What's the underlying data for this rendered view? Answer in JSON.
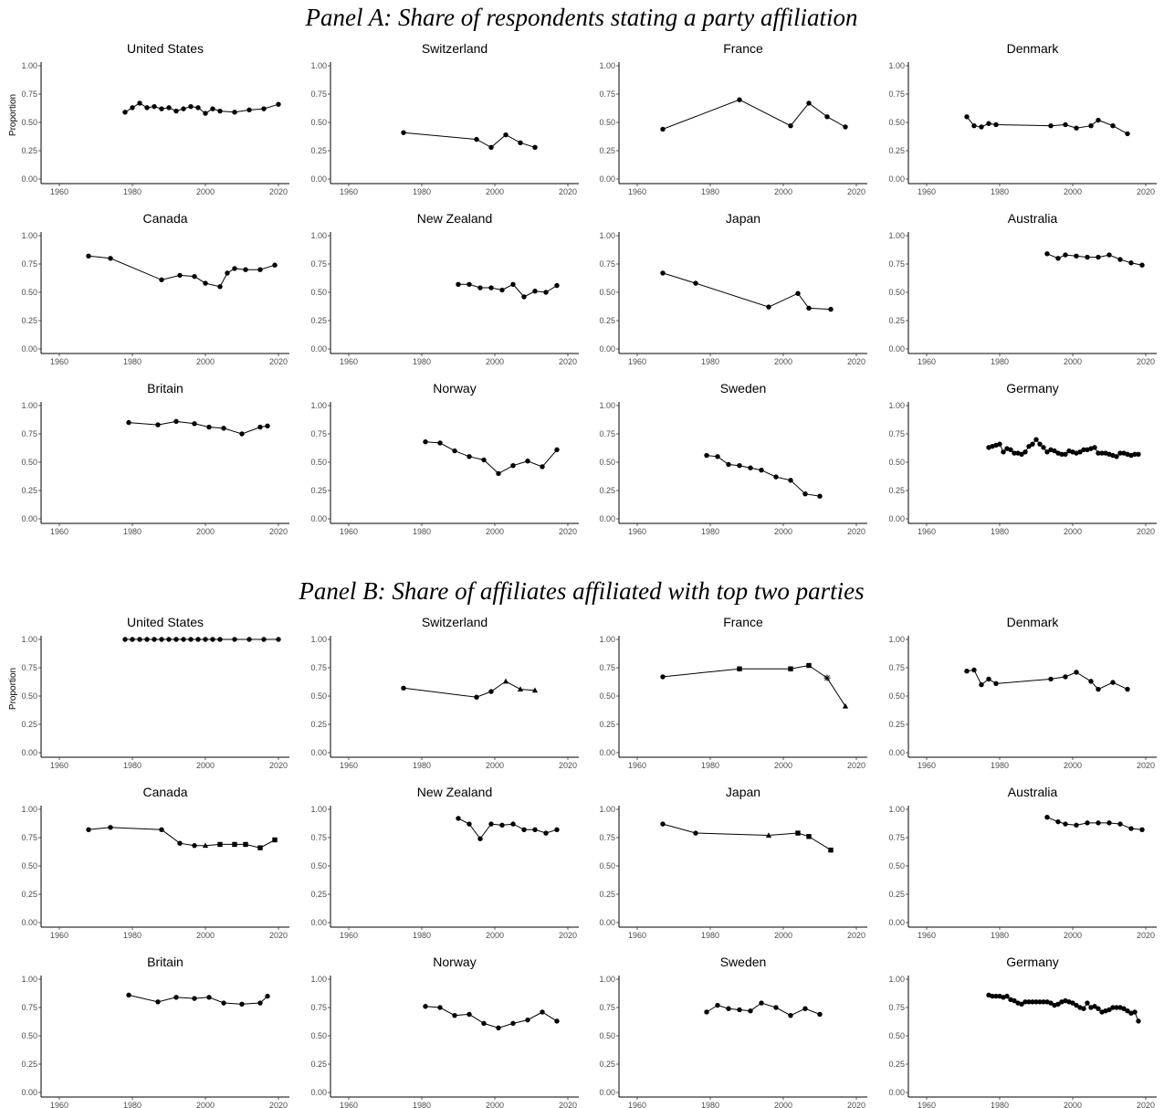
{
  "chart_data": [
    {
      "type": "line",
      "title": "Panel A: Share of respondents stating a party affiliation",
      "ylabel": "Proportion",
      "xlim": [
        1955,
        2023
      ],
      "ylim": [
        0,
        1
      ],
      "xticks": [
        1960,
        1980,
        2000,
        2020
      ],
      "yticks": [
        "0.00",
        "0.25",
        "0.50",
        "0.75",
        "1.00"
      ],
      "grid": false,
      "facets": [
        {
          "title": "United States",
          "x": [
            1978,
            1980,
            1982,
            1984,
            1986,
            1988,
            1990,
            1992,
            1994,
            1996,
            1998,
            2000,
            2002,
            2004,
            2008,
            2012,
            2016,
            2020
          ],
          "y": [
            0.59,
            0.63,
            0.67,
            0.63,
            0.64,
            0.62,
            0.63,
            0.6,
            0.62,
            0.64,
            0.63,
            0.58,
            0.62,
            0.6,
            0.59,
            0.61,
            0.62,
            0.66
          ],
          "markers": [
            "circle"
          ]
        },
        {
          "title": "Switzerland",
          "x": [
            1975,
            1995,
            1999,
            2003,
            2007,
            2011
          ],
          "y": [
            0.41,
            0.35,
            0.28,
            0.39,
            0.32,
            0.28
          ],
          "markers": [
            "circle"
          ]
        },
        {
          "title": "France",
          "x": [
            1967,
            1988,
            2002,
            2007,
            2012,
            2017
          ],
          "y": [
            0.44,
            0.7,
            0.47,
            0.67,
            0.55,
            0.46
          ],
          "markers": [
            "circle"
          ]
        },
        {
          "title": "Denmark",
          "x": [
            1971,
            1973,
            1975,
            1977,
            1979,
            1994,
            1998,
            2001,
            2005,
            2007,
            2011,
            2015
          ],
          "y": [
            0.55,
            0.47,
            0.46,
            0.49,
            0.48,
            0.47,
            0.48,
            0.45,
            0.47,
            0.52,
            0.47,
            0.4
          ],
          "markers": [
            "circle"
          ]
        },
        {
          "title": "Canada",
          "x": [
            1968,
            1974,
            1988,
            1993,
            1997,
            2000,
            2004,
            2006,
            2008,
            2011,
            2015,
            2019
          ],
          "y": [
            0.82,
            0.8,
            0.61,
            0.65,
            0.64,
            0.58,
            0.55,
            0.67,
            0.71,
            0.7,
            0.7,
            0.74
          ],
          "markers": [
            "circle"
          ]
        },
        {
          "title": "New Zealand",
          "x": [
            1990,
            1993,
            1996,
            1999,
            2002,
            2005,
            2008,
            2011,
            2014,
            2017
          ],
          "y": [
            0.57,
            0.57,
            0.54,
            0.54,
            0.52,
            0.57,
            0.46,
            0.51,
            0.5,
            0.56
          ],
          "markers": [
            "circle"
          ]
        },
        {
          "title": "Japan",
          "x": [
            1967,
            1976,
            1996,
            2004,
            2007,
            2013
          ],
          "y": [
            0.67,
            0.58,
            0.37,
            0.49,
            0.36,
            0.35
          ],
          "markers": [
            "circle"
          ]
        },
        {
          "title": "Australia",
          "x": [
            1993,
            1996,
            1998,
            2001,
            2004,
            2007,
            2010,
            2013,
            2016,
            2019
          ],
          "y": [
            0.84,
            0.8,
            0.83,
            0.82,
            0.81,
            0.81,
            0.83,
            0.79,
            0.76,
            0.74
          ],
          "markers": [
            "circle"
          ]
        },
        {
          "title": "Britain",
          "x": [
            1979,
            1987,
            1992,
            1997,
            2001,
            2005,
            2010,
            2015,
            2017
          ],
          "y": [
            0.85,
            0.83,
            0.86,
            0.84,
            0.81,
            0.8,
            0.75,
            0.81,
            0.82
          ],
          "markers": [
            "circle"
          ]
        },
        {
          "title": "Norway",
          "x": [
            1981,
            1985,
            1989,
            1993,
            1997,
            2001,
            2005,
            2009,
            2013,
            2017
          ],
          "y": [
            0.68,
            0.67,
            0.6,
            0.55,
            0.52,
            0.4,
            0.47,
            0.51,
            0.46,
            0.61
          ],
          "markers": [
            "circle"
          ]
        },
        {
          "title": "Sweden",
          "x": [
            1979,
            1982,
            1985,
            1988,
            1991,
            1994,
            1998,
            2002,
            2006,
            2010
          ],
          "y": [
            0.56,
            0.55,
            0.48,
            0.47,
            0.45,
            0.43,
            0.37,
            0.34,
            0.22,
            0.2
          ],
          "markers": [
            "circle"
          ]
        },
        {
          "title": "Germany",
          "x": [
            1977,
            1978,
            1979,
            1980,
            1981,
            1982,
            1983,
            1984,
            1985,
            1986,
            1987,
            1988,
            1989,
            1990,
            1991,
            1992,
            1993,
            1994,
            1995,
            1996,
            1997,
            1998,
            1999,
            2000,
            2001,
            2002,
            2003,
            2004,
            2005,
            2006,
            2007,
            2008,
            2009,
            2010,
            2011,
            2012,
            2013,
            2014,
            2015,
            2016,
            2017,
            2018
          ],
          "y": [
            0.63,
            0.64,
            0.65,
            0.66,
            0.59,
            0.62,
            0.61,
            0.58,
            0.58,
            0.57,
            0.59,
            0.64,
            0.66,
            0.7,
            0.66,
            0.63,
            0.59,
            0.61,
            0.6,
            0.58,
            0.57,
            0.57,
            0.6,
            0.59,
            0.58,
            0.59,
            0.61,
            0.61,
            0.62,
            0.63,
            0.58,
            0.58,
            0.58,
            0.57,
            0.56,
            0.55,
            0.58,
            0.58,
            0.57,
            0.56,
            0.57,
            0.57
          ],
          "markers": [
            "circle"
          ]
        }
      ]
    },
    {
      "type": "line",
      "title": "Panel B: Share of affiliates affiliated with top two parties",
      "ylabel": "Proportion",
      "xlim": [
        1955,
        2023
      ],
      "ylim": [
        0,
        1
      ],
      "xticks": [
        1960,
        1980,
        2000,
        2020
      ],
      "yticks": [
        "0.00",
        "0.25",
        "0.50",
        "0.75",
        "1.00"
      ],
      "grid": false,
      "facets": [
        {
          "title": "United States",
          "x": [
            1978,
            1980,
            1982,
            1984,
            1986,
            1988,
            1990,
            1992,
            1994,
            1996,
            1998,
            2000,
            2002,
            2004,
            2008,
            2012,
            2016,
            2020
          ],
          "y": [
            1,
            1,
            1,
            1,
            1,
            1,
            1,
            1,
            1,
            1,
            1,
            1,
            1,
            1,
            1,
            1,
            1,
            1
          ],
          "markers": [
            "circle"
          ]
        },
        {
          "title": "Switzerland",
          "x": [
            1975,
            1995,
            1999,
            2003,
            2007,
            2011
          ],
          "y": [
            0.57,
            0.49,
            0.54,
            0.63,
            0.56,
            0.55
          ],
          "markers": [
            "circle",
            "circle",
            "circle",
            "triangle",
            "triangle",
            "triangle"
          ]
        },
        {
          "title": "France",
          "x": [
            1967,
            1988,
            2002,
            2007,
            2012,
            2017
          ],
          "y": [
            0.67,
            0.74,
            0.74,
            0.77,
            0.66,
            0.41
          ],
          "markers": [
            "circle",
            "square",
            "square",
            "square",
            "star",
            "triangle"
          ]
        },
        {
          "title": "Denmark",
          "x": [
            1971,
            1973,
            1975,
            1977,
            1979,
            1994,
            1998,
            2001,
            2005,
            2007,
            2011,
            2015
          ],
          "y": [
            0.72,
            0.73,
            0.6,
            0.65,
            0.61,
            0.65,
            0.67,
            0.71,
            0.63,
            0.56,
            0.62,
            0.56
          ],
          "markers": [
            "circle"
          ]
        },
        {
          "title": "Canada",
          "x": [
            1968,
            1974,
            1988,
            1993,
            1997,
            2000,
            2004,
            2008,
            2011,
            2015,
            2019
          ],
          "y": [
            0.82,
            0.84,
            0.82,
            0.7,
            0.68,
            0.68,
            0.69,
            0.69,
            0.69,
            0.66,
            0.73
          ],
          "markers": [
            "circle",
            "circle",
            "circle",
            "circle",
            "circle",
            "triangle",
            "square",
            "square",
            "square",
            "square",
            "square"
          ]
        },
        {
          "title": "New Zealand",
          "x": [
            1990,
            1993,
            1996,
            1999,
            2002,
            2005,
            2008,
            2011,
            2014,
            2017
          ],
          "y": [
            0.92,
            0.87,
            0.74,
            0.87,
            0.86,
            0.87,
            0.82,
            0.82,
            0.79,
            0.82
          ],
          "markers": [
            "circle"
          ]
        },
        {
          "title": "Japan",
          "x": [
            1967,
            1976,
            1996,
            2004,
            2007,
            2013
          ],
          "y": [
            0.87,
            0.79,
            0.77,
            0.79,
            0.76,
            0.64
          ],
          "markers": [
            "circle",
            "circle",
            "triangle",
            "square",
            "square",
            "square"
          ]
        },
        {
          "title": "Australia",
          "x": [
            1993,
            1996,
            1998,
            2001,
            2004,
            2007,
            2010,
            2013,
            2016,
            2019
          ],
          "y": [
            0.93,
            0.89,
            0.87,
            0.86,
            0.88,
            0.88,
            0.88,
            0.87,
            0.83,
            0.82
          ],
          "markers": [
            "circle"
          ]
        },
        {
          "title": "Britain",
          "x": [
            1979,
            1987,
            1992,
            1997,
            2001,
            2005,
            2010,
            2015,
            2017
          ],
          "y": [
            0.86,
            0.8,
            0.84,
            0.83,
            0.84,
            0.79,
            0.78,
            0.79,
            0.85
          ],
          "markers": [
            "circle"
          ]
        },
        {
          "title": "Norway",
          "x": [
            1981,
            1985,
            1989,
            1993,
            1997,
            2001,
            2005,
            2009,
            2013,
            2017
          ],
          "y": [
            0.76,
            0.75,
            0.68,
            0.69,
            0.61,
            0.57,
            0.61,
            0.64,
            0.71,
            0.63
          ],
          "markers": [
            "circle"
          ]
        },
        {
          "title": "Sweden",
          "x": [
            1979,
            1982,
            1985,
            1988,
            1991,
            1994,
            1998,
            2002,
            2006,
            2010
          ],
          "y": [
            0.71,
            0.77,
            0.74,
            0.73,
            0.72,
            0.79,
            0.75,
            0.68,
            0.74,
            0.69
          ],
          "markers": [
            "circle"
          ]
        },
        {
          "title": "Germany",
          "x": [
            1977,
            1978,
            1979,
            1980,
            1981,
            1982,
            1983,
            1984,
            1985,
            1986,
            1987,
            1988,
            1989,
            1990,
            1991,
            1992,
            1993,
            1994,
            1995,
            1996,
            1997,
            1998,
            1999,
            2000,
            2001,
            2002,
            2003,
            2004,
            2005,
            2006,
            2007,
            2008,
            2009,
            2010,
            2011,
            2012,
            2013,
            2014,
            2015,
            2016,
            2017,
            2018
          ],
          "y": [
            0.86,
            0.85,
            0.85,
            0.85,
            0.84,
            0.85,
            0.82,
            0.81,
            0.79,
            0.78,
            0.8,
            0.8,
            0.8,
            0.8,
            0.8,
            0.8,
            0.8,
            0.79,
            0.77,
            0.78,
            0.8,
            0.81,
            0.8,
            0.79,
            0.77,
            0.75,
            0.74,
            0.79,
            0.75,
            0.76,
            0.74,
            0.71,
            0.72,
            0.73,
            0.75,
            0.75,
            0.75,
            0.74,
            0.72,
            0.7,
            0.71,
            0.63
          ],
          "markers": [
            "circle"
          ]
        }
      ]
    }
  ]
}
